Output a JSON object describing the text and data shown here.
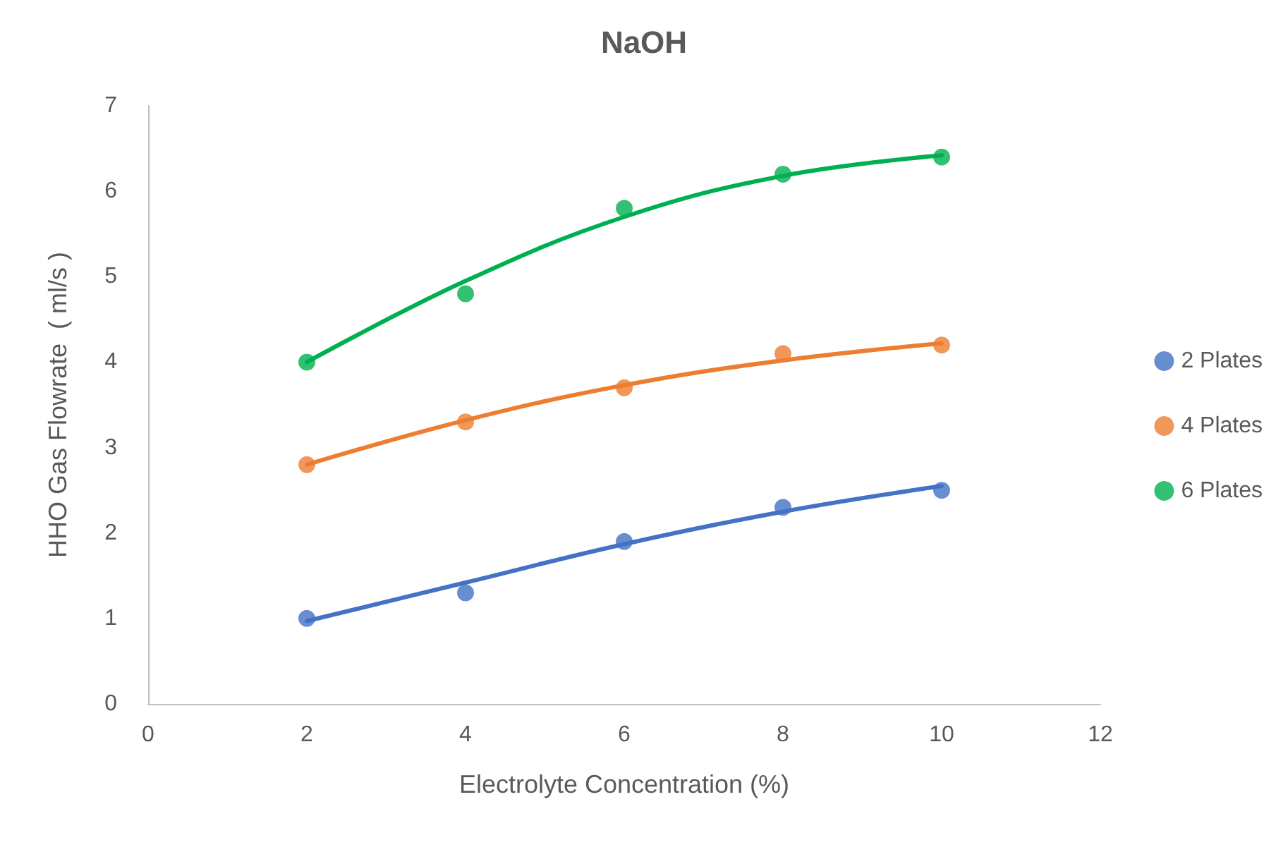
{
  "chart_data": {
    "type": "scatter",
    "title": "NaOH",
    "xlabel": "Electrolyte Concentration (%)",
    "ylabel": "HHO Gas Flowrate  ( ml/s )",
    "x": [
      2,
      4,
      6,
      8,
      10
    ],
    "series": [
      {
        "name": "2 Plates",
        "color": "#4472c4",
        "values": [
          1.0,
          1.3,
          1.9,
          2.3,
          2.5
        ]
      },
      {
        "name": "4 Plates",
        "color": "#ed7d31",
        "values": [
          2.8,
          3.3,
          3.7,
          4.1,
          4.2
        ]
      },
      {
        "name": "6 Plates",
        "color": "#00b050",
        "values": [
          4.0,
          4.8,
          5.8,
          6.2,
          6.4
        ]
      },
      {
        "type": "line",
        "color": "#4472c4",
        "x": [
          2,
          4,
          6,
          8,
          10
        ],
        "values": [
          0.97,
          1.42,
          1.87,
          2.25,
          2.55
        ],
        "marker": "none"
      },
      {
        "type": "line",
        "color": "#ed7d31",
        "x": [
          2,
          4,
          6,
          8,
          10
        ],
        "values": [
          2.8,
          3.32,
          3.73,
          4.02,
          4.22
        ],
        "marker": "none"
      },
      {
        "type": "line",
        "color": "#00b050",
        "x": [
          2,
          4,
          6,
          8,
          10
        ],
        "values": [
          4.0,
          4.95,
          5.7,
          6.18,
          6.42
        ],
        "marker": "none"
      }
    ],
    "xlim": [
      0,
      12
    ],
    "xticks": [
      0,
      2,
      4,
      6,
      8,
      10,
      12
    ],
    "ylim": [
      0,
      7
    ],
    "yticks": [
      0,
      1,
      2,
      3,
      4,
      5,
      6,
      7
    ],
    "grid": false,
    "legend": "right",
    "marker": "circle"
  }
}
